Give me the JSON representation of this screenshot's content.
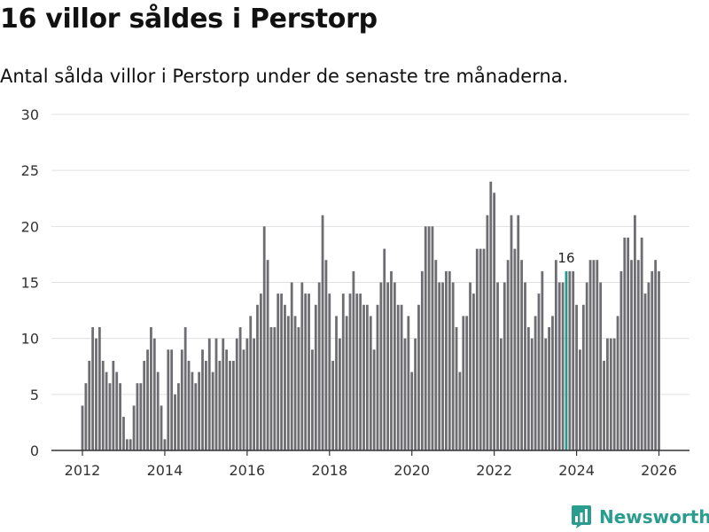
{
  "header": {
    "title": "16 villor såldes i Perstorp",
    "subtitle": "Antal sålda villor i Perstorp under de senaste tre månaderna."
  },
  "brand": {
    "name": "Newsworthy",
    "icon": "newsworthy-logo-icon"
  },
  "colors": {
    "bar": "#6e6d72",
    "highlight": "#23998d",
    "grid": "#e1e1e1",
    "axis": "#333333",
    "brand": "#2a9d8f"
  },
  "chart_data": {
    "type": "bar",
    "title": "16 villor såldes i Perstorp",
    "xlabel": "",
    "ylabel": "",
    "ylim": [
      0,
      30
    ],
    "yticks": [
      0,
      5,
      10,
      15,
      20,
      25,
      30
    ],
    "xticks": [
      2012,
      2014,
      2016,
      2018,
      2020,
      2022,
      2024,
      2026
    ],
    "x_start": 2012,
    "x_step": 0.08333,
    "grid": true,
    "highlight_index": 141,
    "highlight_label": "16",
    "values": [
      4,
      6,
      8,
      11,
      10,
      11,
      8,
      7,
      6,
      8,
      7,
      6,
      3,
      1,
      1,
      4,
      6,
      6,
      8,
      9,
      11,
      10,
      7,
      4,
      1,
      9,
      9,
      5,
      6,
      9,
      11,
      8,
      7,
      6,
      7,
      9,
      8,
      10,
      7,
      10,
      8,
      10,
      9,
      8,
      8,
      10,
      11,
      9,
      10,
      12,
      10,
      13,
      14,
      20,
      17,
      11,
      11,
      14,
      14,
      13,
      12,
      15,
      12,
      11,
      15,
      14,
      14,
      9,
      13,
      15,
      21,
      17,
      14,
      8,
      12,
      10,
      14,
      12,
      14,
      16,
      14,
      14,
      13,
      13,
      12,
      9,
      13,
      15,
      18,
      15,
      16,
      15,
      13,
      13,
      10,
      12,
      7,
      10,
      13,
      16,
      20,
      20,
      20,
      17,
      15,
      15,
      16,
      16,
      15,
      11,
      7,
      12,
      12,
      15,
      14,
      18,
      18,
      18,
      21,
      24,
      23,
      15,
      10,
      15,
      17,
      21,
      18,
      21,
      17,
      15,
      11,
      10,
      12,
      14,
      16,
      10,
      11,
      12,
      17,
      15,
      15,
      16,
      16,
      16,
      13,
      9,
      13,
      15,
      17,
      17,
      17,
      15,
      8,
      10,
      10,
      10,
      12,
      16,
      19,
      19,
      17,
      21,
      17,
      19,
      14,
      15,
      16,
      17,
      16
    ]
  }
}
